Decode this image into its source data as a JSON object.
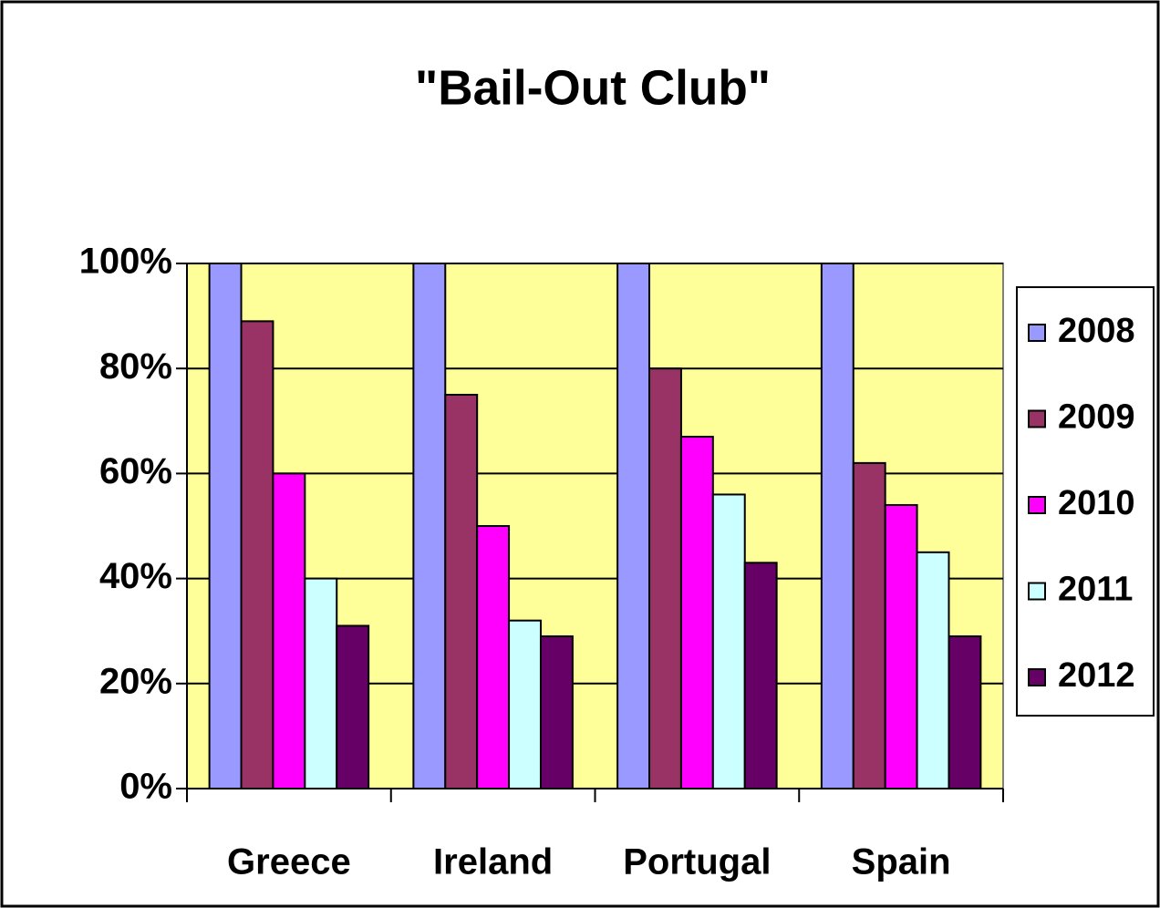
{
  "chart_data": {
    "type": "bar",
    "title": "\"Bail-Out Club\"",
    "categories": [
      "Greece",
      "Ireland",
      "Portugal",
      "Spain"
    ],
    "series": [
      {
        "name": "2008",
        "color": "#9999ff",
        "values": [
          100,
          100,
          100,
          100
        ]
      },
      {
        "name": "2009",
        "color": "#993366",
        "values": [
          89,
          75,
          80,
          62
        ]
      },
      {
        "name": "2010",
        "color": "#ff00ff",
        "values": [
          60,
          50,
          67,
          54
        ]
      },
      {
        "name": "2011",
        "color": "#ccffff",
        "values": [
          40,
          32,
          56,
          45
        ]
      },
      {
        "name": "2012",
        "color": "#660066",
        "values": [
          31,
          29,
          43,
          29
        ]
      }
    ],
    "ylim": [
      0,
      100
    ],
    "yticks": [
      {
        "value": 0,
        "label": "0%"
      },
      {
        "value": 20,
        "label": "20%"
      },
      {
        "value": 40,
        "label": "40%"
      },
      {
        "value": 60,
        "label": "60%"
      },
      {
        "value": 80,
        "label": "80%"
      },
      {
        "value": 100,
        "label": "100%"
      }
    ],
    "grid": true,
    "plot_background": "#ffff99",
    "legend": "right"
  }
}
